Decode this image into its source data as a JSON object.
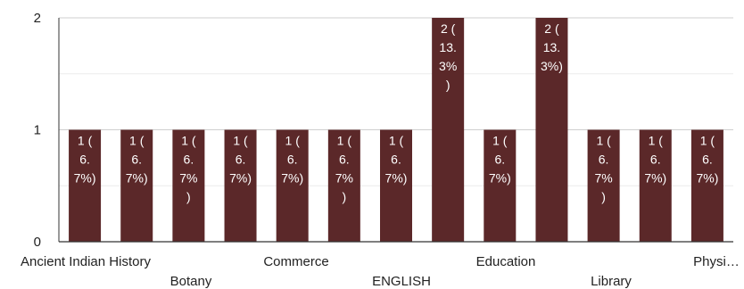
{
  "chart_data": {
    "type": "bar",
    "categories": [
      "Ancient Indian History",
      "",
      "",
      "",
      "",
      "",
      "",
      "",
      "",
      "",
      "",
      "",
      ""
    ],
    "x_tick_labels": [
      "Ancient Indian History",
      "Botany",
      "Commerce",
      "ENGLISH",
      "Education",
      "Library",
      "Physi…"
    ],
    "values": [
      1,
      1,
      1,
      1,
      1,
      1,
      1,
      2,
      1,
      2,
      1,
      1,
      1
    ],
    "data_labels": [
      [
        "1 (",
        "6.",
        "7%)"
      ],
      [
        "1 (",
        "6.",
        "7%)"
      ],
      [
        "1 (",
        "6.",
        "7%",
        ")"
      ],
      [
        "1 (",
        "6.",
        "7%)"
      ],
      [
        "1 (",
        "6.",
        "7%)"
      ],
      [
        "1 (",
        "6.",
        "7%",
        ")"
      ],
      [
        "1 (",
        "6.",
        "7%)"
      ],
      [
        "2 (",
        "13.",
        "3%",
        ")"
      ],
      [
        "1 (",
        "6.",
        "7%)"
      ],
      [
        "2 (",
        "13.",
        "3%)"
      ],
      [
        "1 (",
        "6.",
        "7%",
        ")"
      ],
      [
        "1 (",
        "6.",
        "7%)"
      ],
      [
        "1 (",
        "6.",
        "7%)"
      ]
    ],
    "yticks": [
      "0",
      "1",
      "2"
    ],
    "ylim": [
      0,
      2
    ],
    "grid": true,
    "bar_color": "#5b2829",
    "title": "",
    "xlabel": "",
    "ylabel": ""
  }
}
